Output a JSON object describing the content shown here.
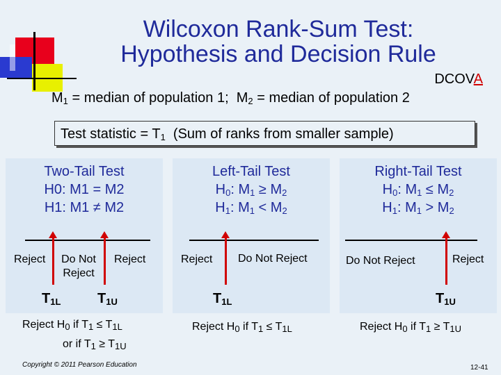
{
  "slide": {
    "title_line1": "Wilcoxon Rank-Sum Test:",
    "title_line2": "Hypothesis and Decision Rule",
    "dcova_prefix": "DCOV",
    "dcova_accent": "A",
    "medians": {
      "m1": "M",
      "m1_def": " = median of population 1;  ",
      "m2": "M",
      "m2_def": " = median of population 2"
    },
    "test_statistic": {
      "prefix": "Test statistic = T",
      "suffix": "  (Sum of ranks from smaller sample)"
    },
    "panels": [
      {
        "title": "Two-Tail Test",
        "h0": "H0: M1 = M2",
        "h1": "H1: M1 ≠ M2",
        "reject_left": "Reject",
        "do_not_reject_line1": "Do Not",
        "do_not_reject_line2": "Reject",
        "reject_right": "Reject",
        "crit_left": "T1L",
        "crit_right": "T1U",
        "rule_line1": "Reject H0 if T1 ≤ T1L",
        "rule_line2": "or if T1 ≥ T1U"
      },
      {
        "title": "Left-Tail Test",
        "h0": "H0: M1 ≥ M2",
        "h1": "H1: M1 < M2",
        "reject": "Reject",
        "do_not_reject": "Do Not Reject",
        "crit": "T1L",
        "rule": "Reject H0 if T1 ≤ T1L"
      },
      {
        "title": "Right-Tail Test",
        "h0": "H0: M1 ≤ M2",
        "h1": "H1: M1 > M2",
        "do_not_reject": "Do Not Reject",
        "reject": "Reject",
        "crit": "T1U",
        "rule": "Reject H0 if T1 ≥ T1U"
      }
    ],
    "copyright": "Copyright © 2011 Pearson Education",
    "page_number": "12-41"
  },
  "colors": {
    "title": "#1f2a9a",
    "accent": "#d00000",
    "panel": "#dce8f4",
    "background": "#eaf1f7"
  }
}
